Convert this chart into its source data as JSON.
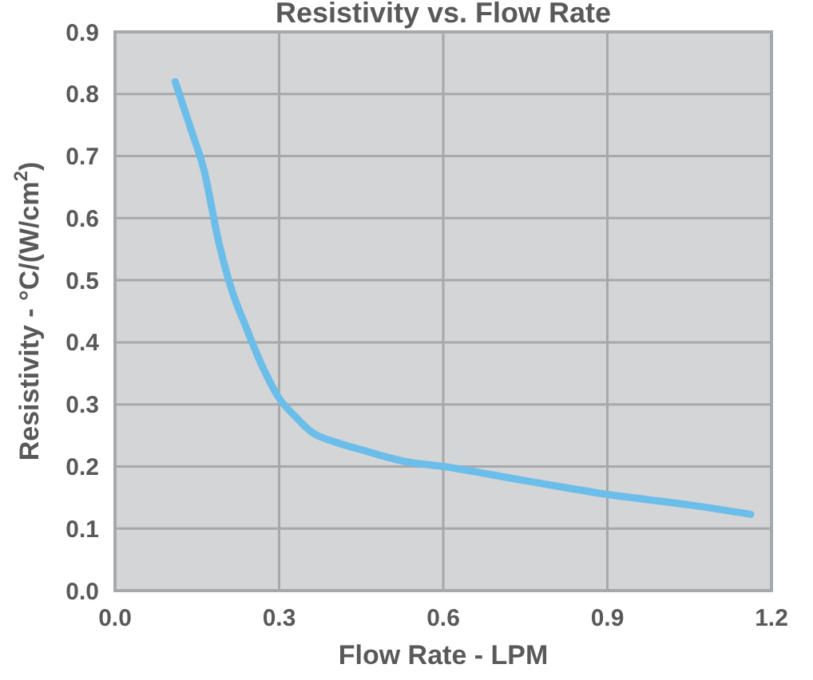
{
  "chart_data": {
    "type": "line",
    "title": "Resistivity vs. Flow Rate",
    "xlabel": "Flow Rate - LPM",
    "ylabel": "Resistivity - °C/(W/cm$^{2}$)",
    "x": [
      0.11,
      0.14,
      0.162,
      0.19,
      0.215,
      0.237,
      0.27,
      0.3,
      0.33,
      0.36,
      0.4,
      0.45,
      0.53,
      0.6,
      0.75,
      0.9,
      1.05,
      1.162
    ],
    "series": [
      {
        "color": "#6bbdea",
        "values": [
          0.82,
          0.74,
          0.68,
          0.56,
          0.48,
          0.43,
          0.36,
          0.31,
          0.28,
          0.255,
          0.24,
          0.227,
          0.208,
          0.2,
          0.177,
          0.155,
          0.138,
          0.123
        ]
      }
    ],
    "xlim": [
      0,
      1.2
    ],
    "xticks": [
      {
        "value": 0,
        "label": "0.0"
      },
      0.3,
      0.6,
      0.9,
      {
        "value": 1.2,
        "label": "1.2"
      }
    ],
    "ylim": [
      0,
      0.9
    ],
    "yticks": [
      {
        "value": 0,
        "label": "0.0"
      },
      0.1,
      0.2,
      0.3,
      0.4,
      0.5,
      0.6,
      0.7,
      0.8,
      0.9
    ],
    "grid": true,
    "marker": "none",
    "line_style": "solid"
  }
}
